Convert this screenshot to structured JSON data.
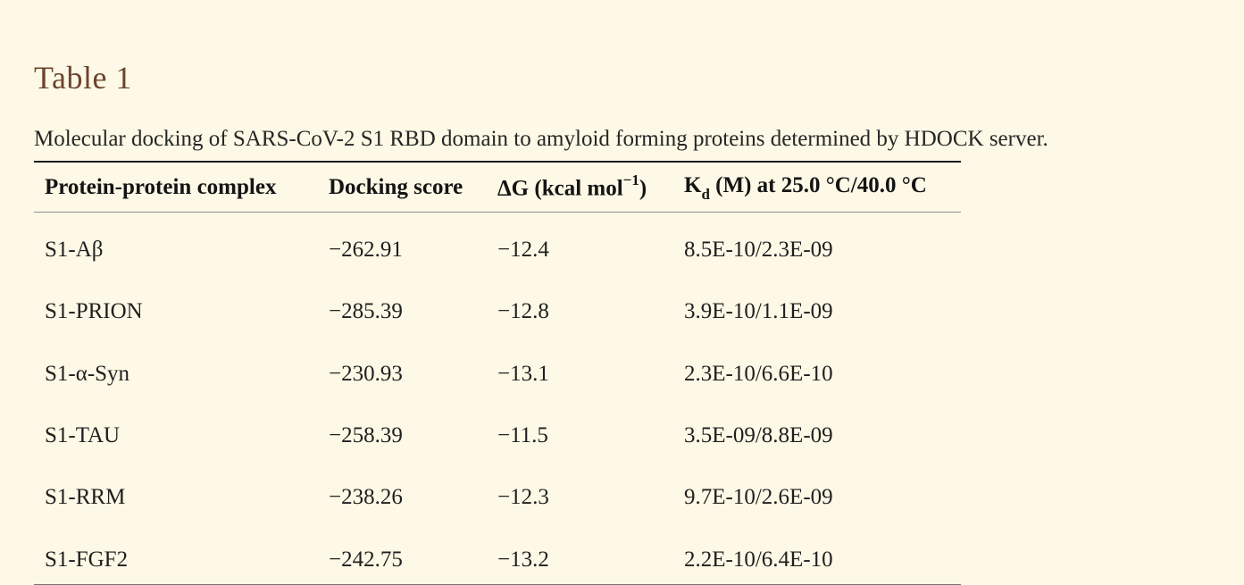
{
  "page": {
    "background_color": "#fdf9e6",
    "title_color": "#6e432d",
    "text_color": "#1f1f1f",
    "rule_top_color": "#1c1c1c",
    "rule_mid_color": "#919191",
    "rule_bottom_color": "#767676"
  },
  "title": "Table 1",
  "caption": "Molecular docking of SARS-CoV-2 S1 RBD domain to amyloid forming proteins determined by HDOCK server.",
  "table": {
    "columns": [
      {
        "text": "Protein-protein complex"
      },
      {
        "text": "Docking score"
      },
      {
        "pre": "ΔG (kcal mol",
        "sup": "−1",
        "post": ")"
      },
      {
        "pre": "K",
        "sub": "d",
        "post": " (M) at 25.0 °C/40.0 °C"
      }
    ],
    "rows": [
      [
        "S1-Aβ",
        "−262.91",
        "−12.4",
        "8.5E-10/2.3E-09"
      ],
      [
        "S1-PRION",
        "−285.39",
        "−12.8",
        "3.9E-10/1.1E-09"
      ],
      [
        "S1-α-Syn",
        "−230.93",
        "−13.1",
        "2.3E-10/6.6E-10"
      ],
      [
        "S1-TAU",
        "−258.39",
        "−11.5",
        "3.5E-09/8.8E-09"
      ],
      [
        "S1-RRM",
        "−238.26",
        "−12.3",
        "9.7E-10/2.6E-09"
      ],
      [
        "S1-FGF2",
        "−242.75",
        "−13.2",
        "2.2E-10/6.4E-10"
      ]
    ]
  }
}
